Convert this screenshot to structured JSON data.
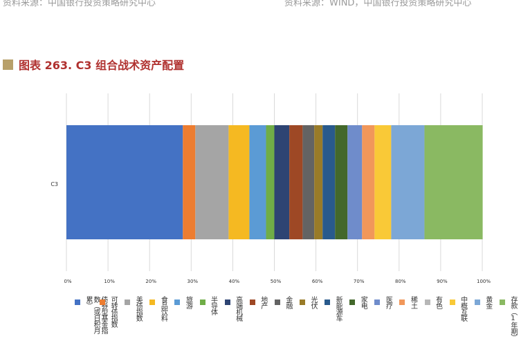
{
  "header": {
    "source_left": "资料来源：中国银行投资策略研究中心",
    "source_right": "资料来源：WIND，中国银行投资策略研究中心"
  },
  "chart_data": {
    "type": "bar",
    "orientation": "horizontal",
    "stacked": "percent",
    "title": "图表 263. C3 组合战术资产配置",
    "categories": [
      "C3"
    ],
    "xlim": [
      0,
      100
    ],
    "x_ticks": [
      "0%",
      "10%",
      "20%",
      "30%",
      "40%",
      "50%",
      "60%",
      "70%",
      "80%",
      "90%",
      "100%"
    ],
    "grid": true,
    "legend_position": "bottom",
    "series": [
      {
        "name": "债券型基金指数（或日积月累）",
        "values": [
          28
        ],
        "color": "#4472c4"
      },
      {
        "name": "可转债指数",
        "values": [
          3
        ],
        "color": "#ed7d31"
      },
      {
        "name": "美债指数",
        "values": [
          8
        ],
        "color": "#a5a5a5"
      },
      {
        "name": "食品饮料",
        "values": [
          5
        ],
        "color": "#f5b922"
      },
      {
        "name": "旅游",
        "values": [
          4
        ],
        "color": "#5b9bd5"
      },
      {
        "name": "半导体",
        "values": [
          2
        ],
        "color": "#70ad47"
      },
      {
        "name": "高端机械",
        "values": [
          3.6
        ],
        "color": "#2e4473"
      },
      {
        "name": "地产",
        "values": [
          3.2
        ],
        "color": "#9e4825"
      },
      {
        "name": "金融",
        "values": [
          2.8
        ],
        "color": "#636363"
      },
      {
        "name": "光伏",
        "values": [
          2
        ],
        "color": "#997b28"
      },
      {
        "name": "新能源车",
        "values": [
          3
        ],
        "color": "#295a8c"
      },
      {
        "name": "家电",
        "values": [
          3
        ],
        "color": "#43682b"
      },
      {
        "name": "医疗",
        "values": [
          3.5
        ],
        "color": "#6f8ccb"
      },
      {
        "name": "稀土",
        "values": [
          3
        ],
        "color": "#f1975a"
      },
      {
        "name": "有色",
        "values": [
          0
        ],
        "color": "#b7b7b7"
      },
      {
        "name": "中概互联",
        "values": [
          4
        ],
        "color": "#f9c937"
      },
      {
        "name": "黄金",
        "values": [
          8
        ],
        "color": "#7ca7d6"
      },
      {
        "name": "存款（1年期）",
        "values": [
          14
        ],
        "color": "#8ab962"
      }
    ]
  }
}
